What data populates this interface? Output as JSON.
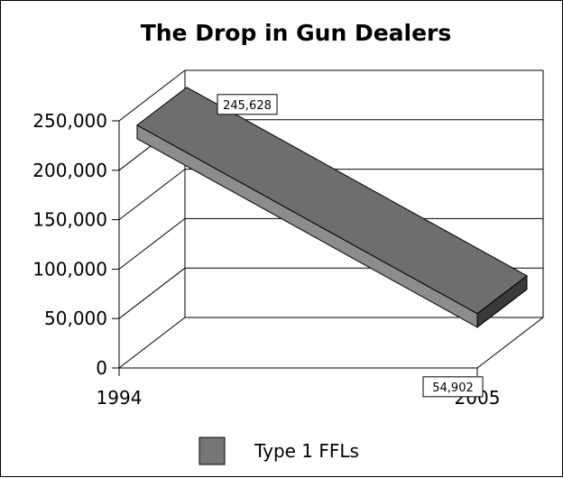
{
  "chart_data": {
    "type": "line",
    "title": "The Drop in Gun Dealers",
    "x": [
      "1994",
      "2005"
    ],
    "series": [
      {
        "name": "Type 1 FFLs",
        "values": [
          245628,
          54902
        ],
        "color": "#777777"
      }
    ],
    "data_labels": [
      "245,628",
      "54,902"
    ],
    "y_ticks": [
      "0",
      "50,000",
      "100,000",
      "150,000",
      "200,000",
      "250,000"
    ],
    "ylim": [
      0,
      250000
    ],
    "grid": true,
    "legend": "bottom",
    "style": "3d ribbon"
  }
}
